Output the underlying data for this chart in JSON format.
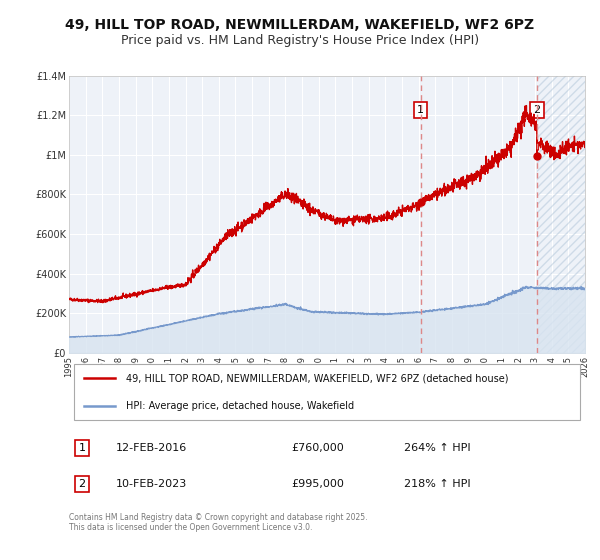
{
  "title_line1": "49, HILL TOP ROAD, NEWMILLERDAM, WAKEFIELD, WF2 6PZ",
  "title_line2": "Price paid vs. HM Land Registry's House Price Index (HPI)",
  "title_fontsize": 10,
  "subtitle_fontsize": 9,
  "background_color": "#ffffff",
  "plot_bg_color": "#eef2f8",
  "grid_color": "#ffffff",
  "red_line_color": "#cc0000",
  "blue_line_color": "#7799cc",
  "blue_fill_color": "#d8e4f0",
  "hatch_color": "#b0c4d8",
  "vline_color": "#dd8888",
  "marker_color": "#cc0000",
  "sale1_date": 2016.12,
  "sale1_price": 760000,
  "sale1_label": "1",
  "sale2_date": 2023.12,
  "sale2_price": 995000,
  "sale2_label": "2",
  "xmin": 1995,
  "xmax": 2026,
  "ymin": 0,
  "ymax": 1400000,
  "yticks": [
    0,
    200000,
    400000,
    600000,
    800000,
    1000000,
    1200000,
    1400000
  ],
  "ytick_labels": [
    "£0",
    "£200K",
    "£400K",
    "£600K",
    "£800K",
    "£1M",
    "£1.2M",
    "£1.4M"
  ],
  "xticks": [
    1995,
    1996,
    1997,
    1998,
    1999,
    2000,
    2001,
    2002,
    2003,
    2004,
    2005,
    2006,
    2007,
    2008,
    2009,
    2010,
    2011,
    2012,
    2013,
    2014,
    2015,
    2016,
    2017,
    2018,
    2019,
    2020,
    2021,
    2022,
    2023,
    2024,
    2025,
    2026
  ],
  "legend_line1": "49, HILL TOP ROAD, NEWMILLERDAM, WAKEFIELD, WF2 6PZ (detached house)",
  "legend_line2": "HPI: Average price, detached house, Wakefield",
  "annotation1": [
    "1",
    "12-FEB-2016",
    "£760,000",
    "264% ↑ HPI"
  ],
  "annotation2": [
    "2",
    "10-FEB-2023",
    "£995,000",
    "218% ↑ HPI"
  ],
  "footer": "Contains HM Land Registry data © Crown copyright and database right 2025.\nThis data is licensed under the Open Government Licence v3.0."
}
